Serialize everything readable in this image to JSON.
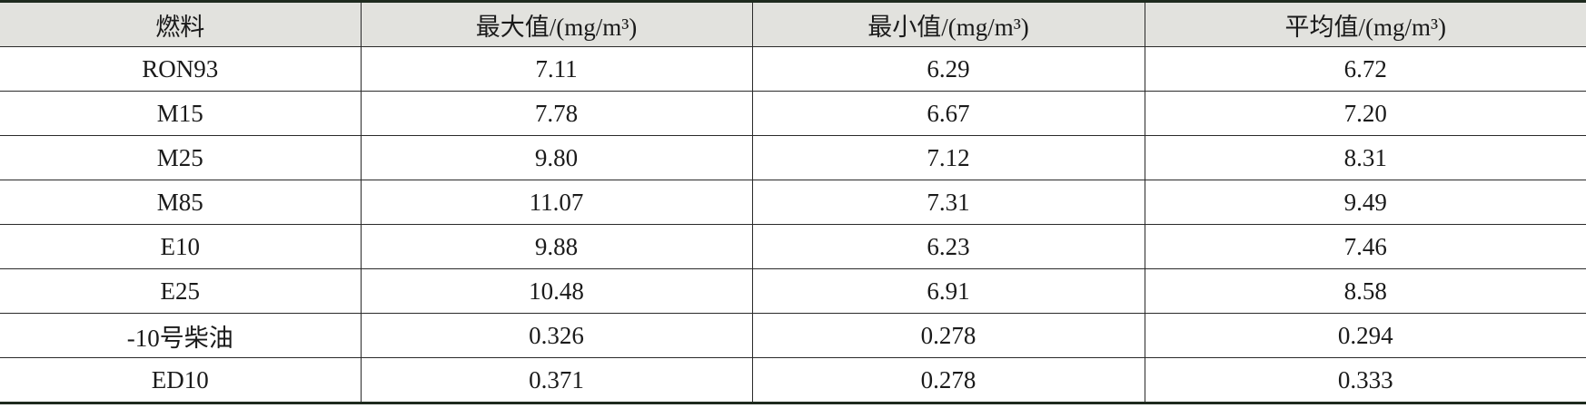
{
  "table": {
    "header": [
      "燃料",
      "最大值/(mg/m³)",
      "最小值/(mg/m³)",
      "平均值/(mg/m³)"
    ],
    "rows": [
      [
        "RON93",
        "7.11",
        "6.29",
        "6.72"
      ],
      [
        "M15",
        "7.78",
        "6.67",
        "7.20"
      ],
      [
        "M25",
        "9.80",
        "7.12",
        "8.31"
      ],
      [
        "M85",
        "11.07",
        "7.31",
        "9.49"
      ],
      [
        "E10",
        "9.88",
        "6.23",
        "7.46"
      ],
      [
        "E25",
        "10.48",
        "6.91",
        "8.58"
      ],
      [
        "-10号柴油",
        "0.326",
        "0.278",
        "0.294"
      ],
      [
        "ED10",
        "0.371",
        "0.278",
        "0.333"
      ]
    ]
  }
}
